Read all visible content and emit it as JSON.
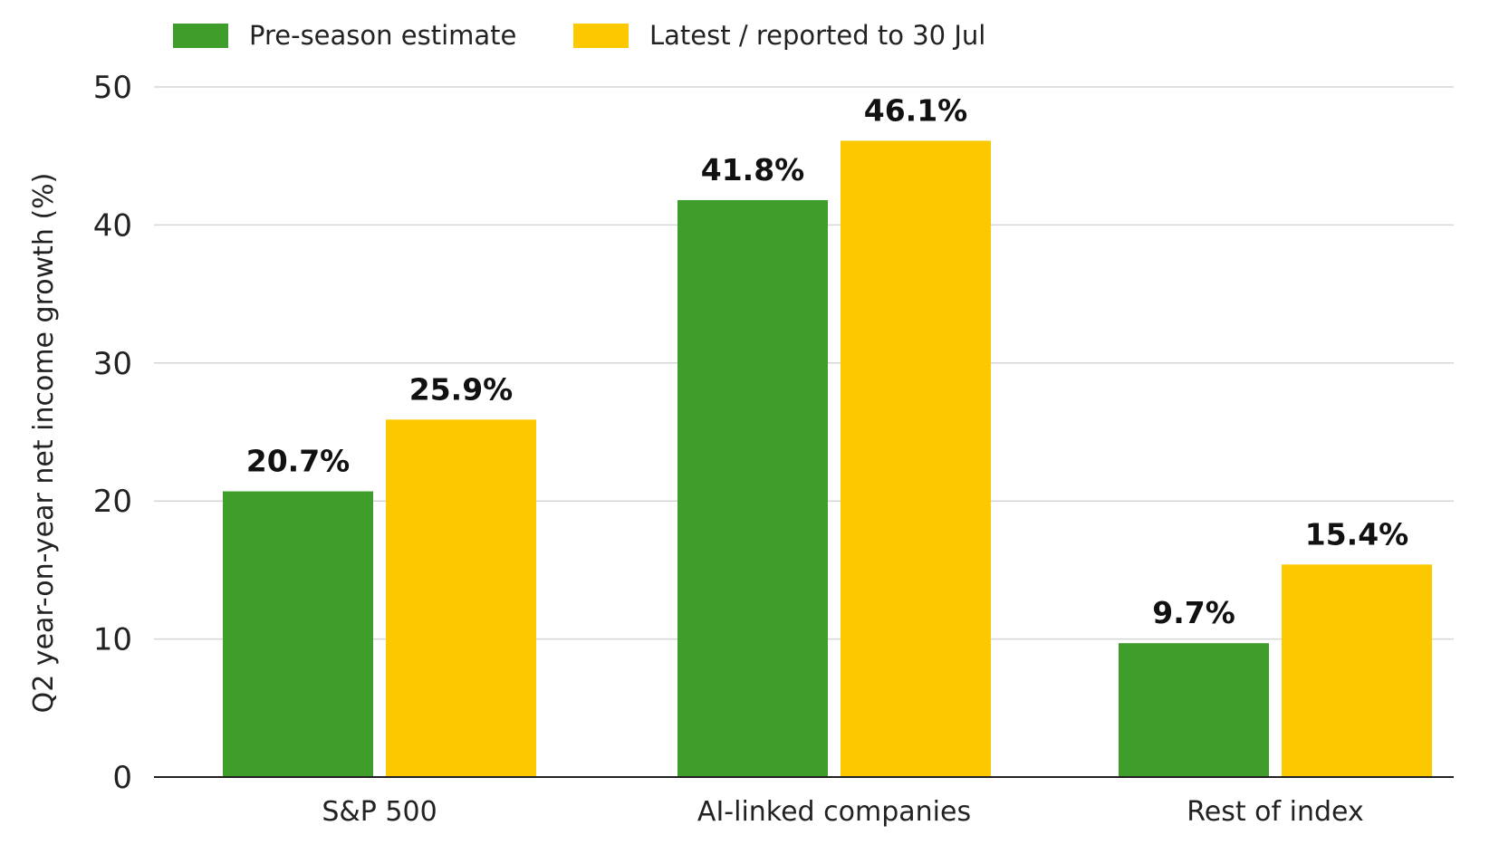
{
  "chart_data": {
    "type": "bar",
    "ylabel": "Q2 year-on-year net income growth (%)",
    "xlabel": "",
    "ylim": [
      0,
      50
    ],
    "yticks": [
      0,
      10,
      20,
      30,
      40,
      50
    ],
    "grid": true,
    "legend_position": "top-left",
    "categories": [
      "S&P 500",
      "AI-linked companies",
      "Rest of index"
    ],
    "series": [
      {
        "name": "Pre-season estimate",
        "color": "#3f9e2b",
        "values": [
          20.7,
          41.8,
          9.7
        ],
        "labels": [
          "20.7%",
          "41.8%",
          "9.7%"
        ]
      },
      {
        "name": "Latest / reported to 30 Jul",
        "color": "#fcc800",
        "values": [
          25.9,
          46.1,
          15.4
        ],
        "labels": [
          "25.9%",
          "46.1%",
          "15.4%"
        ]
      }
    ]
  }
}
